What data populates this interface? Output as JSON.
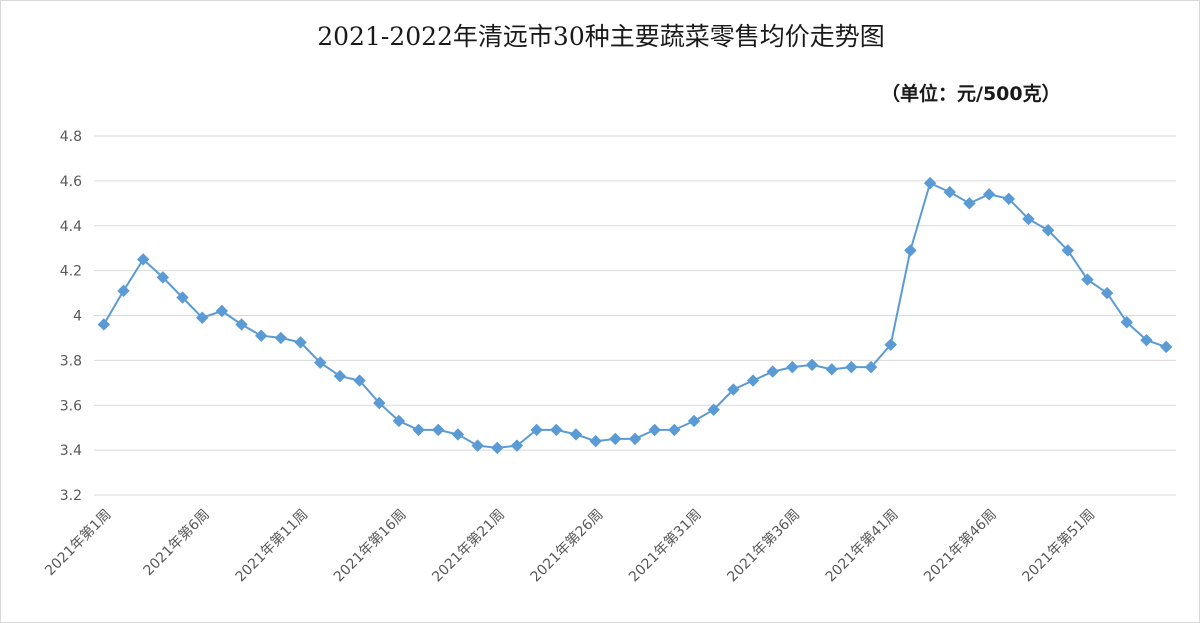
{
  "chart_data": {
    "type": "line",
    "title": "2021-2022年清远市30种主要蔬菜零售均价走势图",
    "unit_note": "（单位：元/500克）",
    "xlabel": "",
    "ylabel": "",
    "ylim": [
      3.2,
      4.8
    ],
    "y_ticks": [
      "3.2",
      "3.4",
      "3.6",
      "3.8",
      "4",
      "4.2",
      "4.4",
      "4.6",
      "4.8"
    ],
    "grid": true,
    "legend": "none",
    "color": "#5b9bd5",
    "x_tick_labels": [
      "2021年第1周",
      "2021年第6周",
      "2021年第11周",
      "2021年第16周",
      "2021年第21周",
      "2021年第26周",
      "2021年第31周",
      "2021年第36周",
      "2021年第41周",
      "2021年第46周",
      "2021年第51周"
    ],
    "values": [
      3.96,
      4.11,
      4.25,
      4.17,
      4.08,
      3.99,
      4.02,
      3.96,
      3.91,
      3.9,
      3.88,
      3.79,
      3.73,
      3.71,
      3.61,
      3.53,
      3.49,
      3.49,
      3.47,
      3.42,
      3.41,
      3.42,
      3.49,
      3.49,
      3.47,
      3.44,
      3.45,
      3.45,
      3.49,
      3.49,
      3.53,
      3.58,
      3.67,
      3.71,
      3.75,
      3.77,
      3.78,
      3.76,
      3.77,
      3.77,
      3.87,
      4.29,
      4.59,
      4.55,
      4.5,
      4.54,
      4.52,
      4.43,
      4.38,
      4.29,
      4.16,
      4.1,
      3.97,
      3.89,
      3.86
    ]
  }
}
